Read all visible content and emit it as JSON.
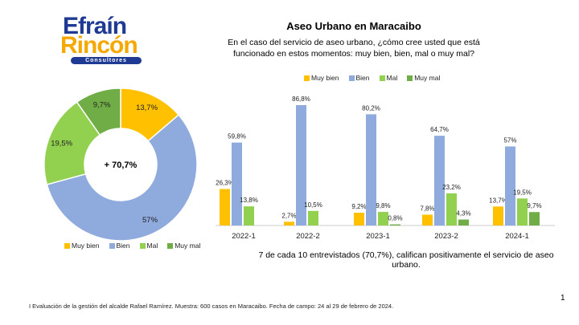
{
  "logo": {
    "line1": "Efraín",
    "line2": "Rincón",
    "line3": "Consultores"
  },
  "title": "Aseo Urbano en Maracaibo",
  "question": "En el caso del servicio de aseo urbano, ¿cómo cree usted que está funcionado en estos momentos: muy bien, bien, mal o muy mal?",
  "note": "7 de cada 10 entrevistados (70,7%), califican positivamente el servicio de aseo urbano.",
  "footer": "I Evaluación de la gestión del alcalde Rafael Ramírez. Muestra: 600 casos en Maracaibo. Fecha de campo: 24 al 29 de febrero de 2024.",
  "page_number": "1",
  "colors": {
    "Muy bien": "#FFC000",
    "Bien": "#8FAADC",
    "Mal": "#92D050",
    "Muy mal": "#70AD47"
  },
  "chart_data": [
    {
      "type": "pie",
      "variant": "donut",
      "center_label": "+ 70,7%",
      "categories": [
        "Muy bien",
        "Bien",
        "Mal",
        "Muy mal"
      ],
      "values": [
        13.7,
        57,
        19.5,
        9.7
      ],
      "labels": [
        "13,7%",
        "57%",
        "19,5%",
        "9,7%"
      ],
      "legend": "bottom"
    },
    {
      "type": "bar",
      "categories": [
        "2022-1",
        "2022-2",
        "2023-1",
        "2023-2",
        "2024-1"
      ],
      "series": [
        {
          "name": "Muy bien",
          "values": [
            26.3,
            2.7,
            9.2,
            7.8,
            13.7
          ],
          "labels": [
            "26,3%",
            "2,7%",
            "9,2%",
            "7,8%",
            "13,7%"
          ]
        },
        {
          "name": "Bien",
          "values": [
            59.8,
            86.8,
            80.2,
            64.7,
            57
          ],
          "labels": [
            "59,8%",
            "86,8%",
            "80,2%",
            "64,7%",
            "57%"
          ]
        },
        {
          "name": "Mal",
          "values": [
            13.8,
            10.5,
            9.8,
            23.2,
            19.5
          ],
          "labels": [
            "13,8%",
            "10,5%",
            "9,8%",
            "23,2%",
            "19,5%"
          ]
        },
        {
          "name": "Muy mal",
          "values": [
            null,
            null,
            0.8,
            4.3,
            9.7
          ],
          "labels": [
            "",
            "",
            "0,8%",
            "4,3%",
            "9,7%"
          ]
        }
      ],
      "ylim": [
        0,
        90
      ],
      "grid": false,
      "legend": "top"
    }
  ]
}
